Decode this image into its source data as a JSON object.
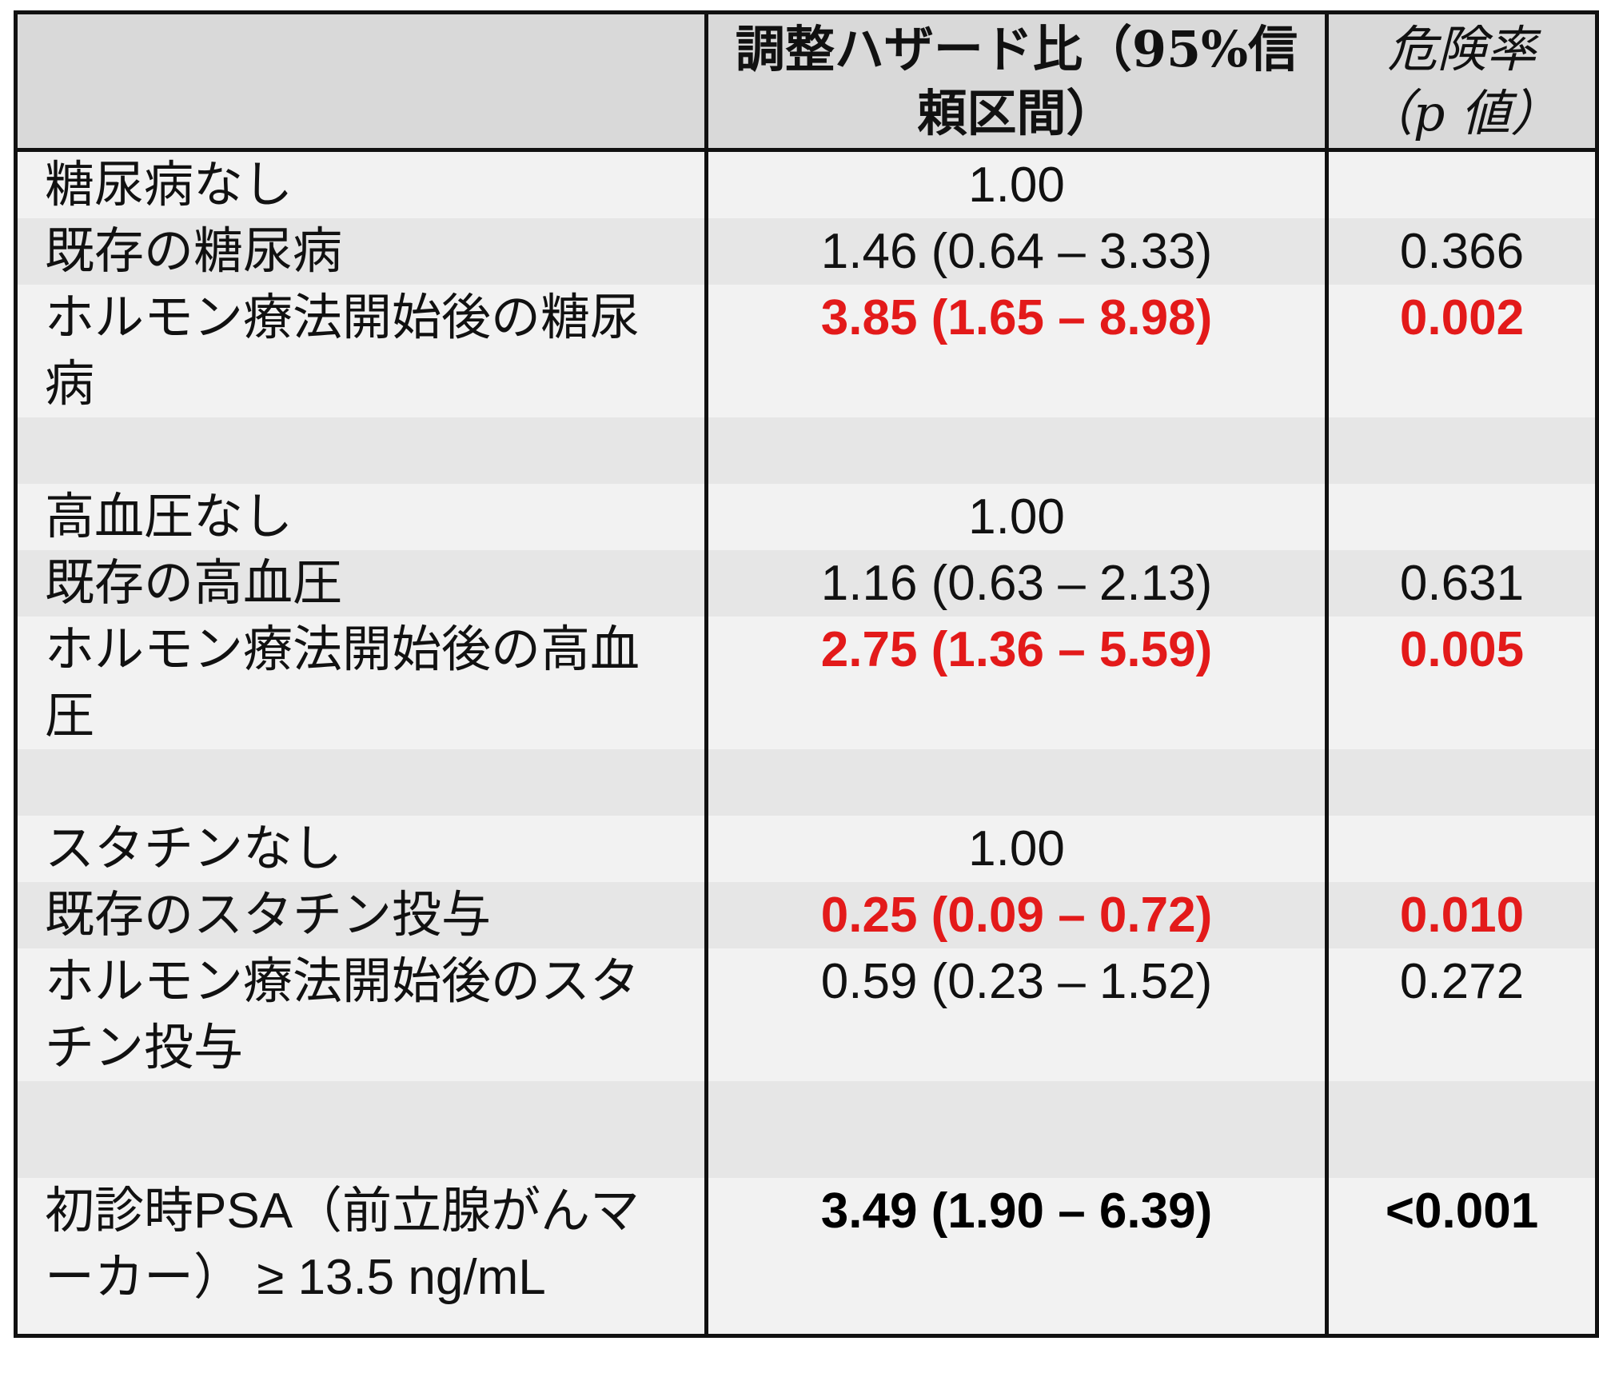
{
  "table": {
    "header": {
      "hr": "調整ハザード比（95%信頼区間）",
      "p": "危険率（p 値）"
    },
    "groups": [
      {
        "rows": [
          {
            "label": "糖尿病なし",
            "hr": "1.00"
          },
          {
            "label": "既存の糖尿病",
            "hr": "1.46 (0.64 – 3.33)",
            "p": "0.366"
          },
          {
            "label": "ホルモン療法開始後の糖尿病",
            "hr": "3.85 (1.65 – 8.98)",
            "p": "0.002",
            "emphasis": "red"
          }
        ]
      },
      {
        "rows": [
          {
            "label": "高血圧なし",
            "hr": "1.00"
          },
          {
            "label": "既存の高血圧",
            "hr": "1.16 (0.63 – 2.13)",
            "p": "0.631"
          },
          {
            "label": "ホルモン療法開始後の高血圧",
            "hr": "2.75 (1.36 – 5.59)",
            "p": "0.005",
            "emphasis": "red"
          }
        ]
      },
      {
        "rows": [
          {
            "label": "スタチンなし",
            "hr": "1.00"
          },
          {
            "label": "既存のスタチン投与",
            "hr": "0.25 (0.09 – 0.72)",
            "p": "0.010",
            "emphasis": "red"
          },
          {
            "label": "ホルモン療法開始後のスタチン投与",
            "hr": "0.59 (0.23 – 1.52)",
            "p": "0.272"
          }
        ]
      },
      {
        "rows": [
          {
            "label": "初診時PSA（前立腺がんマーカー） ≥ 13.5 ng/mL",
            "hr": "3.49 (1.90 – 6.39)",
            "p": "<0.001",
            "emphasis": "bold"
          }
        ]
      }
    ]
  }
}
